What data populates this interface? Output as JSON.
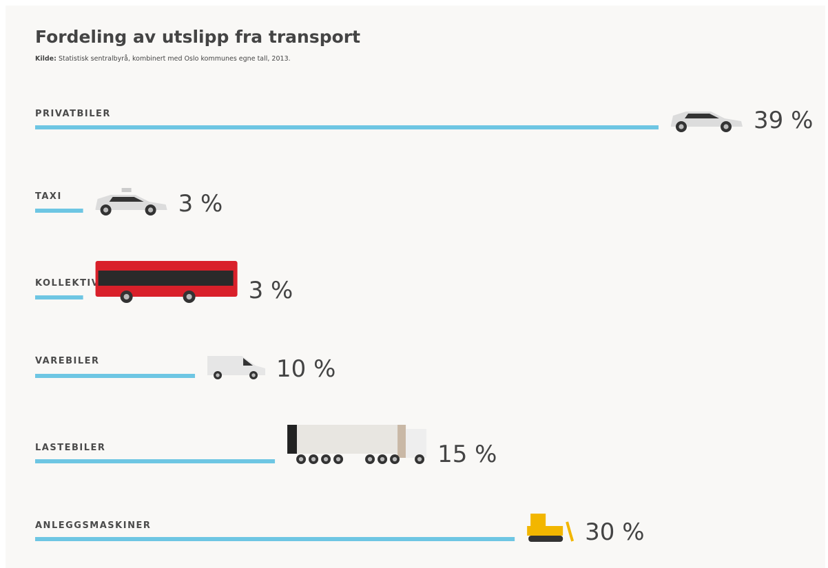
{
  "chart_data": {
    "type": "bar",
    "title": "Fordeling av utslipp fra transport",
    "source_label": "Kilde:",
    "source": "Statistisk sentralbyrå, kombinert med Oslo kommunes egne tall, 2013.",
    "categories": [
      "PRIVATBILER",
      "TAXI",
      "KOLLEKTIV",
      "VAREBILER",
      "LASTEBILER",
      "ANLEGGSMASKINER"
    ],
    "values": [
      39,
      3,
      3,
      10,
      15,
      30
    ],
    "value_labels": [
      "39 %",
      "3 %",
      "3 %",
      "10 %",
      "15 %",
      "30 %"
    ],
    "color": "#6ec6e3"
  }
}
